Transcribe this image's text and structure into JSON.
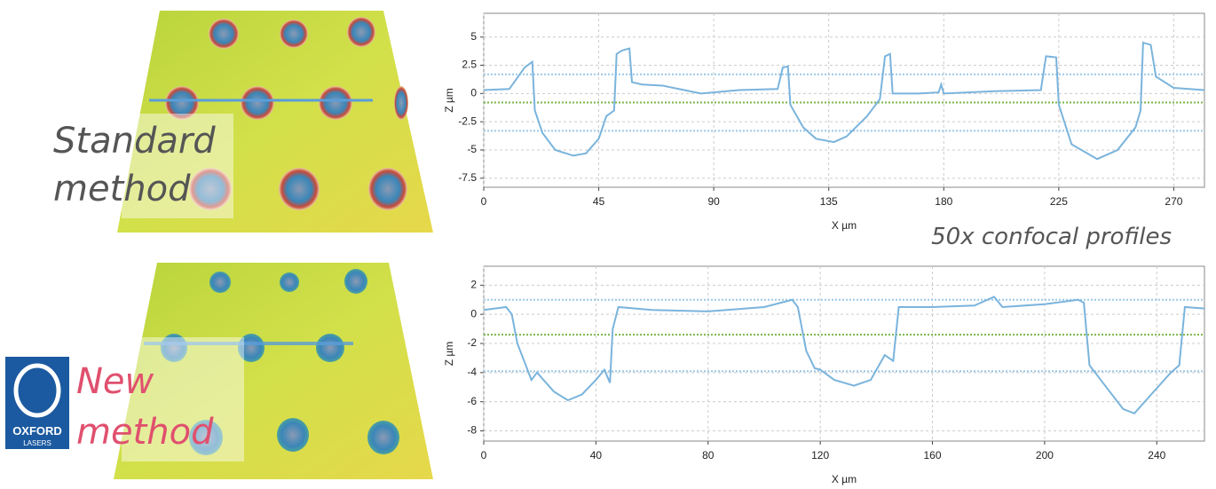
{
  "labels": {
    "standard": [
      "Standard",
      "method"
    ],
    "new": [
      "New",
      "method"
    ],
    "profiles": "50x confocal profiles",
    "logo": [
      "OXFORD",
      "LASERS"
    ]
  },
  "chart_data": [
    {
      "type": "line",
      "xlabel": "X µm",
      "ylabel": "Z µm",
      "xlim": [
        0,
        282
      ],
      "ylim": [
        -8.3,
        7.1
      ],
      "xticks": [
        0,
        45,
        90,
        135,
        180,
        225,
        270
      ],
      "yticks": [
        -7.5,
        -5,
        -2.5,
        0,
        2.5,
        5
      ],
      "grid": true,
      "reference_lines": [
        {
          "value": 1.7,
          "color": "#9cc8e8"
        },
        {
          "value": -0.8,
          "color": "#7ab648"
        },
        {
          "value": -3.3,
          "color": "#9cc8e8"
        }
      ],
      "x": [
        0,
        10,
        16,
        19,
        20,
        23,
        28,
        35,
        40,
        45,
        48,
        51,
        52,
        54,
        57,
        58,
        62,
        70,
        85,
        100,
        115,
        117,
        119,
        120,
        125,
        130,
        137,
        142,
        150,
        155,
        157,
        159,
        160,
        170,
        178,
        179,
        180,
        200,
        218,
        220,
        224,
        225,
        230,
        240,
        248,
        255,
        257,
        258,
        261,
        263,
        270,
        282
      ],
      "series": [
        {
          "name": "Standard",
          "color": "#7ab4dc",
          "values": [
            0.3,
            0.4,
            2.3,
            2.8,
            -1.5,
            -3.5,
            -5,
            -5.5,
            -5.3,
            -4,
            -2,
            -1.5,
            3.5,
            3.8,
            4,
            1,
            0.8,
            0.7,
            0,
            0.3,
            0.4,
            2.3,
            2.4,
            -1,
            -3,
            -4,
            -4.3,
            -3.8,
            -2,
            -0.5,
            3.3,
            3.5,
            0,
            0,
            0.1,
            0.8,
            0,
            0.2,
            0.3,
            3.3,
            3.2,
            -1,
            -4.5,
            -5.8,
            -5,
            -3,
            -1.5,
            4.5,
            4.3,
            1.5,
            0.5,
            0.3
          ]
        }
      ]
    },
    {
      "type": "line",
      "xlabel": "X µm",
      "ylabel": "Z µm",
      "xlim": [
        0,
        257
      ],
      "ylim": [
        -8.7,
        3.3
      ],
      "xticks": [
        0,
        40,
        80,
        120,
        160,
        200,
        240
      ],
      "yticks": [
        -8,
        -6,
        -4,
        -2,
        0,
        2
      ],
      "grid": true,
      "reference_lines": [
        {
          "value": 1.0,
          "color": "#9cc8e8"
        },
        {
          "value": -1.4,
          "color": "#7ab648"
        },
        {
          "value": -3.9,
          "color": "#9cc8e8"
        }
      ],
      "x": [
        0,
        8,
        10,
        12,
        15,
        17,
        19,
        25,
        30,
        35,
        40,
        43,
        45,
        46,
        48,
        60,
        80,
        100,
        110,
        112,
        115,
        118,
        120,
        125,
        132,
        138,
        143,
        146,
        148,
        160,
        175,
        182,
        185,
        200,
        212,
        214,
        216,
        218,
        222,
        228,
        232,
        238,
        245,
        248,
        250,
        257
      ],
      "series": [
        {
          "name": "New",
          "color": "#7ab4dc",
          "values": [
            0.3,
            0.5,
            0,
            -2,
            -3.5,
            -4.5,
            -4,
            -5.3,
            -5.9,
            -5.5,
            -4.5,
            -3.8,
            -4.7,
            -1,
            0.5,
            0.3,
            0.2,
            0.5,
            1.0,
            0.5,
            -2.5,
            -3.7,
            -3.8,
            -4.5,
            -4.9,
            -4.5,
            -2.8,
            -3.2,
            0.5,
            0.5,
            0.6,
            1.2,
            0.5,
            0.7,
            1.0,
            0.8,
            -3.5,
            -4,
            -5,
            -6.5,
            -6.8,
            -5.5,
            -4,
            -3.5,
            0.5,
            0.4
          ]
        }
      ]
    }
  ]
}
